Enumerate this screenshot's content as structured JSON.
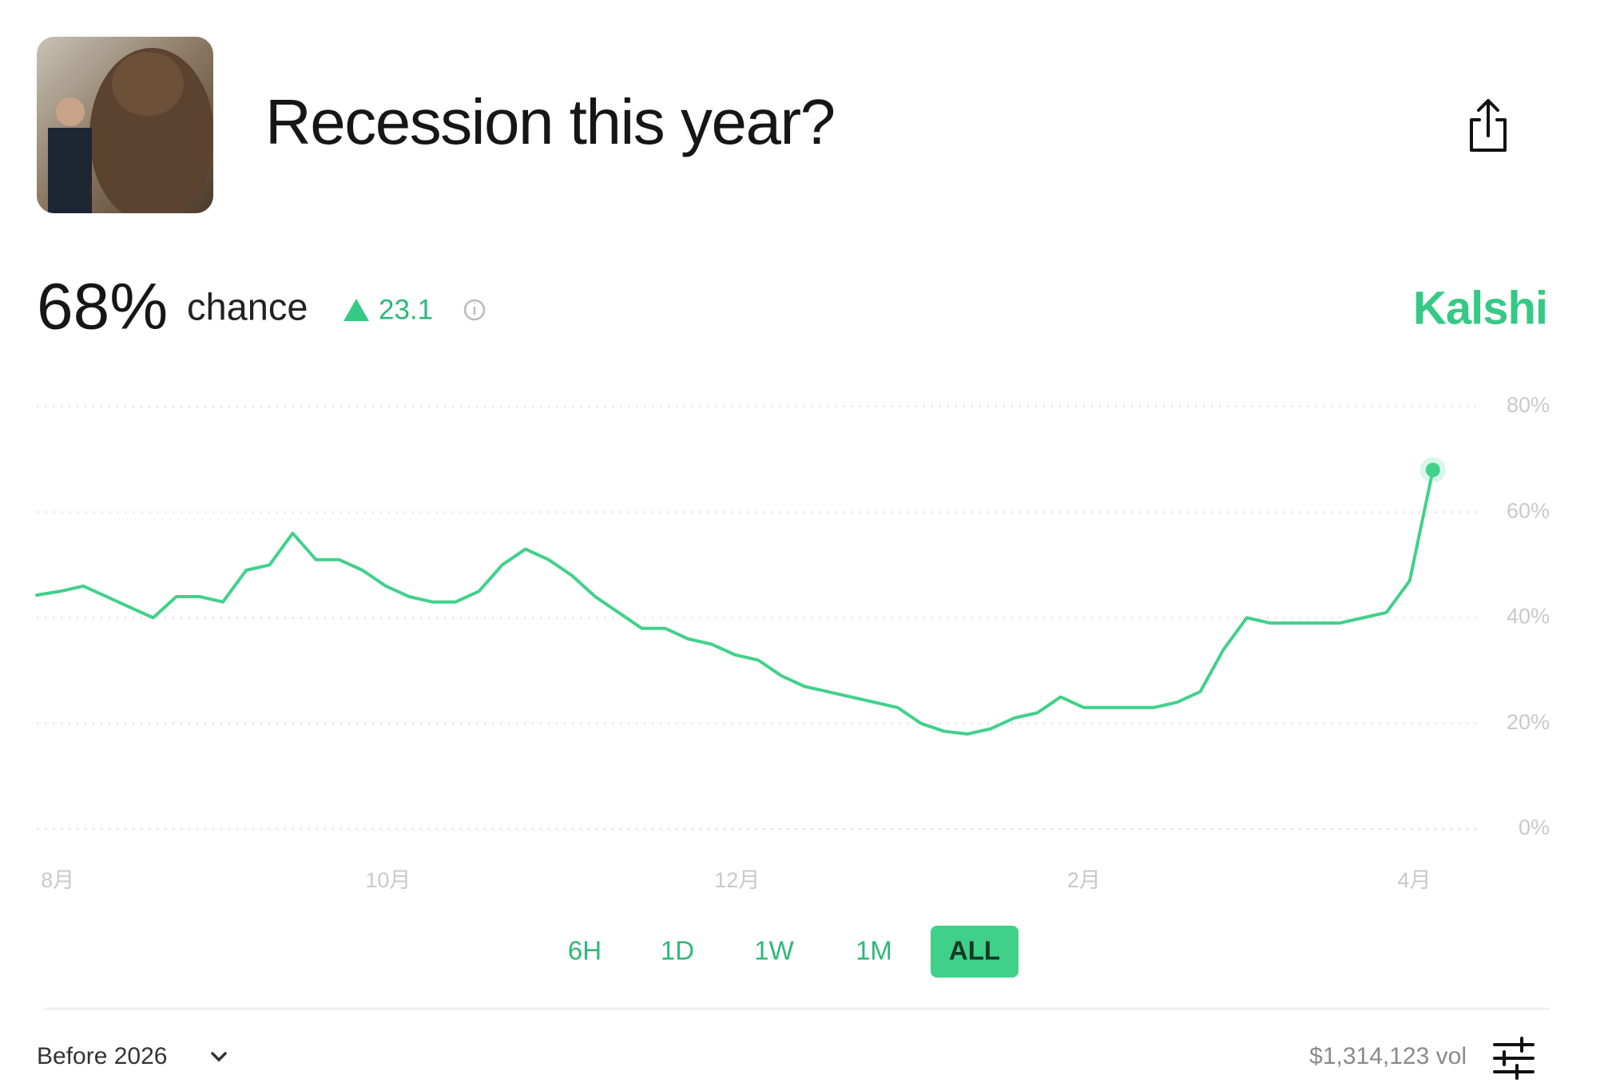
{
  "header": {
    "title": "Recession this year?"
  },
  "summary": {
    "probability": "68%",
    "chance_label": "chance",
    "change": "23.1",
    "brand": "Kalshi"
  },
  "chart_data": {
    "type": "line",
    "color": "#41d18a",
    "values": [
      44.3,
      45,
      46,
      44,
      42,
      40,
      44,
      44,
      43,
      49,
      50,
      56,
      51,
      51,
      49,
      46,
      44,
      43,
      43,
      45,
      50,
      53,
      51,
      48,
      44,
      41,
      38,
      38,
      36,
      35,
      33,
      32,
      29,
      27,
      26,
      25,
      24,
      23,
      20,
      18.5,
      18,
      19,
      21,
      22,
      25,
      23,
      23,
      23,
      23,
      24,
      26,
      34,
      40,
      39,
      39,
      39,
      39,
      40,
      41,
      47,
      68
    ],
    "xlim": [
      0,
      62.1
    ],
    "xticks": [
      {
        "value": 0.9,
        "label": "8月"
      },
      {
        "value": 15.1,
        "label": "10月"
      },
      {
        "value": 30.1,
        "label": "12月"
      },
      {
        "value": 45.0,
        "label": "2月"
      },
      {
        "value": 59.2,
        "label": "4月"
      }
    ],
    "ylim": [
      0,
      80
    ],
    "yticks": [
      {
        "value": 0,
        "label": "0%"
      },
      {
        "value": 20,
        "label": "20%"
      },
      {
        "value": 40,
        "label": "40%"
      },
      {
        "value": 60,
        "label": "60%"
      },
      {
        "value": 80,
        "label": "80%"
      }
    ],
    "grid": true
  },
  "ranges": {
    "options": [
      "6H",
      "1D",
      "1W",
      "1M",
      "ALL"
    ],
    "selected": 4
  },
  "footer": {
    "period": "Before 2026",
    "volume": "$1,314,123 vol"
  }
}
